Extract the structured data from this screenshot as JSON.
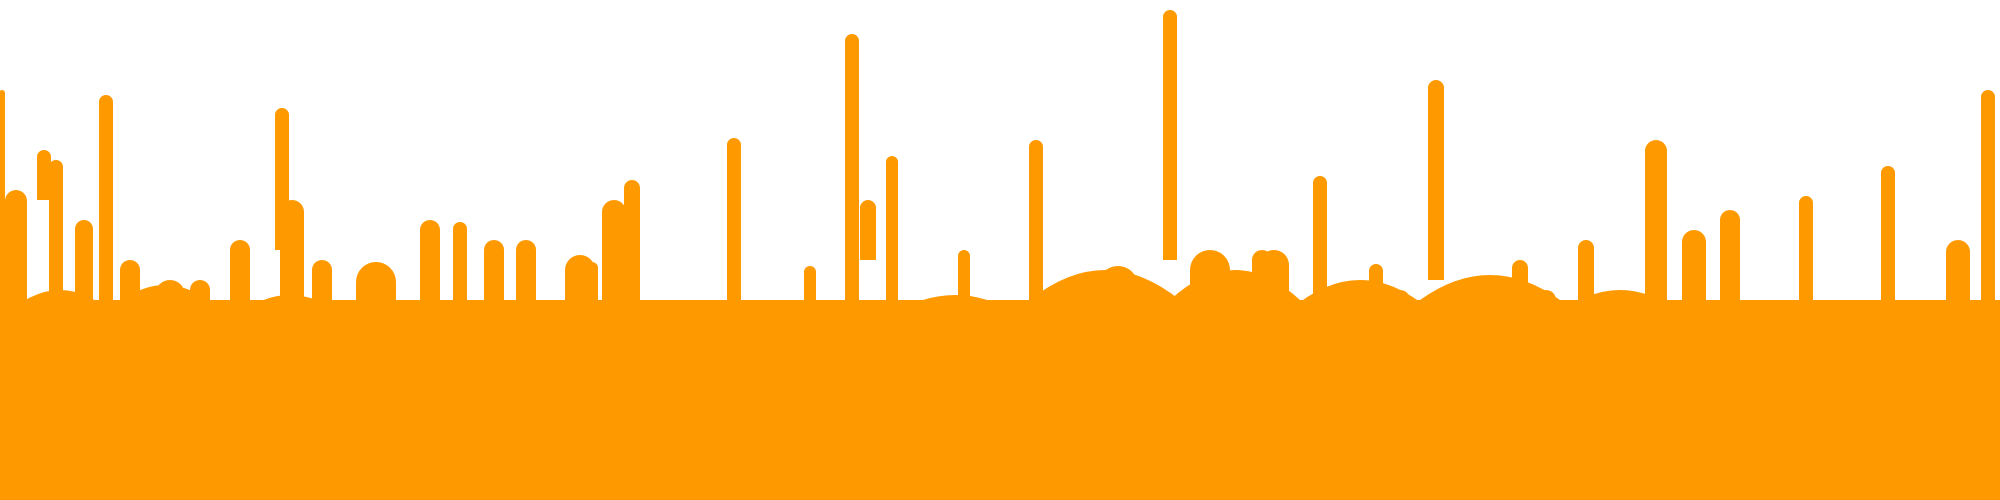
{
  "theme": {
    "background_color": "#ffffff",
    "paint_color": "#FF9900"
  },
  "graphic": {
    "icon": "dripping-paint-border",
    "description_visible_text": ""
  }
}
